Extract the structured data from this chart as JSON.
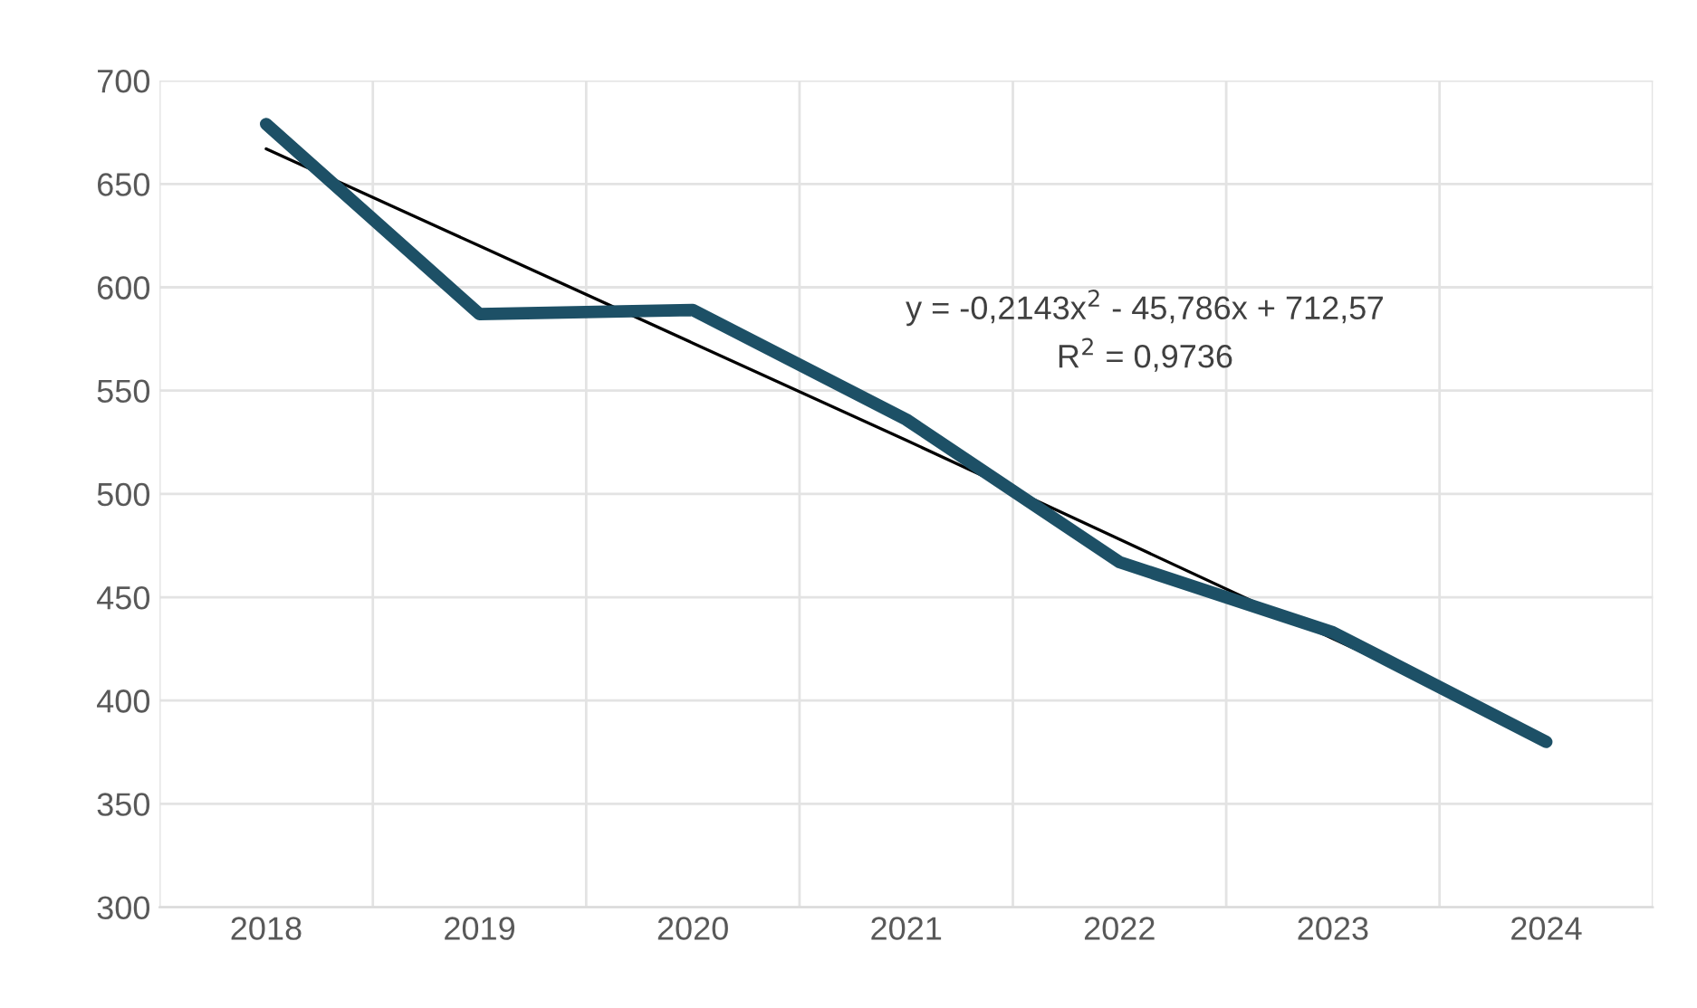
{
  "chart_data": {
    "type": "line",
    "categories": [
      "2018",
      "2019",
      "2020",
      "2021",
      "2022",
      "2023",
      "2024"
    ],
    "series": [
      {
        "color": "#1d5066",
        "values": [
          679,
          587,
          589,
          536,
          467,
          433,
          380
        ]
      },
      {
        "color": "#000000",
        "values": [
          667,
          620,
          573,
          526,
          478,
          430,
          382
        ]
      }
    ],
    "ylim": [
      300,
      700
    ],
    "yticks": [
      300,
      350,
      400,
      450,
      500,
      550,
      600,
      650,
      700
    ],
    "grid": true,
    "marker": "none",
    "line_style": "solid",
    "annotations": [
      "y = -0,2143x$^{2}$ - 45,786x + 712,57",
      "R$^{2}$ = 0,9736"
    ]
  }
}
